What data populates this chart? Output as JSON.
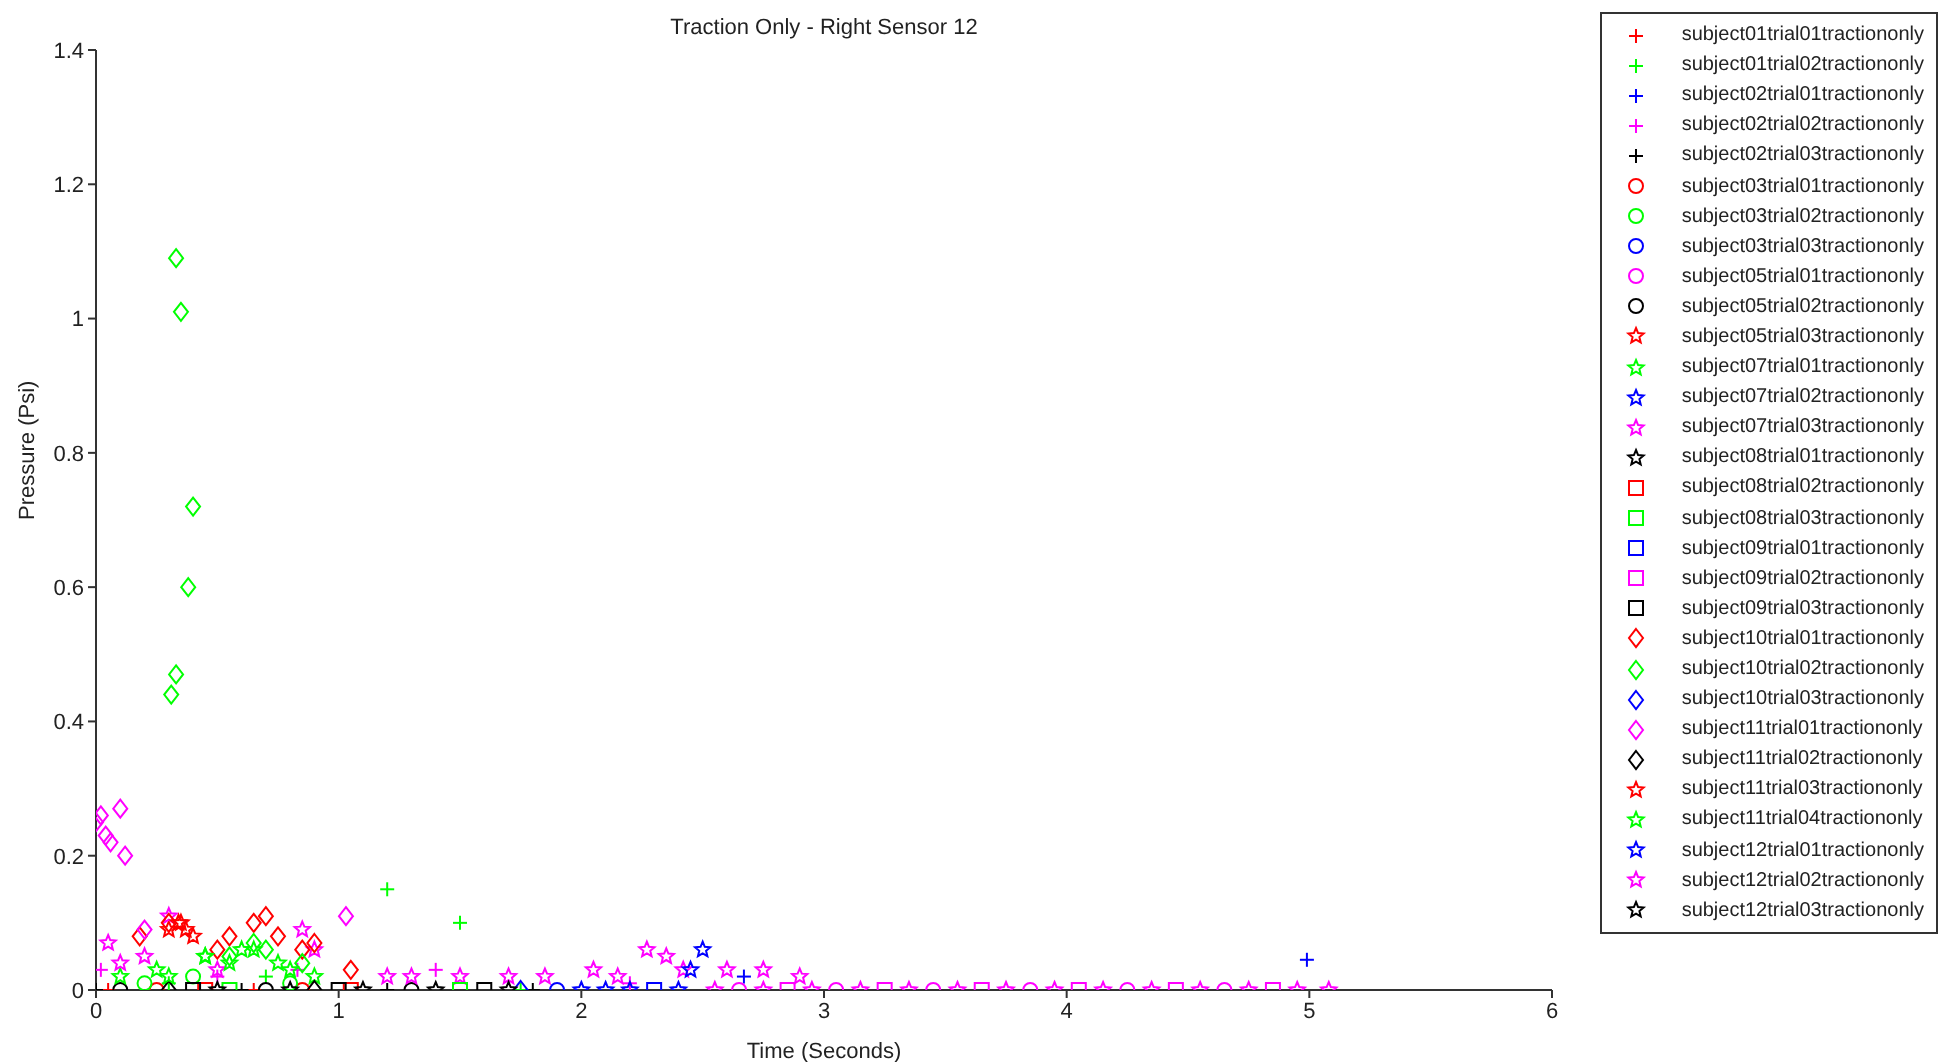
{
  "chart_data": {
    "type": "scatter",
    "title": "Traction Only - Right Sensor 12",
    "xlabel": "Time (Seconds)",
    "ylabel": "Pressure (Psi)",
    "xlim": [
      0,
      6
    ],
    "xticks": [
      0,
      1,
      2,
      3,
      4,
      5,
      6
    ],
    "ylim": [
      0,
      1.4
    ],
    "yticks": [
      0,
      0.2,
      0.4,
      0.6,
      0.8,
      1,
      1.2,
      1.4
    ],
    "grid": false,
    "legend": "right",
    "series": [
      {
        "name": "subject01trial01tractiononly",
        "color": "#ff0000",
        "marker": "cross",
        "x": [
          0.05,
          0.65
        ],
        "values": [
          0,
          0
        ]
      },
      {
        "name": "subject01trial02tractiononly",
        "color": "#00ff00",
        "marker": "cross",
        "x": [
          0.3,
          0.7,
          1.2,
          1.5,
          1.75
        ],
        "values": [
          0.01,
          0.02,
          0.15,
          0.1,
          0
        ]
      },
      {
        "name": "subject02trial01tractiononly",
        "color": "#0000ff",
        "marker": "cross",
        "x": [
          2.67,
          4.99
        ],
        "values": [
          0.02,
          0.045
        ]
      },
      {
        "name": "subject02trial02tractiononly",
        "color": "#ff00ff",
        "marker": "cross",
        "x": [
          0.02,
          0.5,
          0.83,
          1.4,
          2.2
        ],
        "values": [
          0.03,
          0.02,
          0.03,
          0.03,
          0.01
        ]
      },
      {
        "name": "subject02trial03tractiononly",
        "color": "#000000",
        "marker": "cross",
        "x": [
          0.0,
          0.6,
          1.2,
          1.8
        ],
        "values": [
          0,
          0,
          0,
          0
        ]
      },
      {
        "name": "subject03trial01tractiononly",
        "color": "#ff0000",
        "marker": "circle",
        "x": [
          0.25,
          0.85
        ],
        "values": [
          0,
          0
        ]
      },
      {
        "name": "subject03trial02tractiononly",
        "color": "#00ff00",
        "marker": "circle",
        "x": [
          0.2,
          0.4,
          0.8
        ],
        "values": [
          0.01,
          0.02,
          0.01
        ]
      },
      {
        "name": "subject03trial03tractiononly",
        "color": "#0000ff",
        "marker": "circle",
        "x": [
          1.9
        ],
        "values": [
          0
        ]
      },
      {
        "name": "subject05trial01tractiononly",
        "color": "#ff00ff",
        "marker": "circle",
        "x": [
          2.65,
          3.05,
          3.45,
          3.85,
          4.25,
          4.65
        ],
        "values": [
          0,
          0,
          0,
          0,
          0,
          0
        ]
      },
      {
        "name": "subject05trial02tractiononly",
        "color": "#000000",
        "marker": "circle",
        "x": [
          0.1,
          0.7,
          1.3
        ],
        "values": [
          0,
          0,
          0
        ]
      },
      {
        "name": "subject05trial03tractiononly",
        "color": "#ff0000",
        "marker": "star",
        "x": [
          0.3,
          0.35,
          0.4
        ],
        "values": [
          0.09,
          0.1,
          0.08
        ]
      },
      {
        "name": "subject07trial01tractiononly",
        "color": "#00ff00",
        "marker": "star",
        "x": [
          0.1,
          0.25,
          0.45,
          0.6,
          0.75,
          0.9
        ],
        "values": [
          0.02,
          0.03,
          0.05,
          0.06,
          0.04,
          0.02
        ]
      },
      {
        "name": "subject07trial02tractiononly",
        "color": "#0000ff",
        "marker": "star",
        "x": [
          2.1
        ],
        "values": [
          0
        ]
      },
      {
        "name": "subject07trial03tractiononly",
        "color": "#ff00ff",
        "marker": "star",
        "x": [
          0.05,
          0.1,
          0.2,
          0.3,
          0.5,
          0.85,
          0.9,
          1.2,
          1.3,
          1.5,
          1.7,
          1.85,
          2.05,
          2.15,
          2.27,
          2.35,
          2.42,
          2.6,
          2.75,
          2.9
        ],
        "values": [
          0.07,
          0.04,
          0.05,
          0.11,
          0.03,
          0.09,
          0.06,
          0.02,
          0.02,
          0.02,
          0.02,
          0.02,
          0.03,
          0.02,
          0.06,
          0.05,
          0.03,
          0.03,
          0.03,
          0.02
        ]
      },
      {
        "name": "subject08trial01tractiononly",
        "color": "#000000",
        "marker": "star",
        "x": [
          0.8,
          1.4
        ],
        "values": [
          0,
          0
        ]
      },
      {
        "name": "subject08trial02tractiononly",
        "color": "#ff0000",
        "marker": "square",
        "x": [
          0.45,
          1.05
        ],
        "values": [
          0,
          0
        ]
      },
      {
        "name": "subject08trial03tractiononly",
        "color": "#00ff00",
        "marker": "square",
        "x": [
          0.55,
          1.5
        ],
        "values": [
          0,
          0
        ]
      },
      {
        "name": "subject09trial01tractiononly",
        "color": "#0000ff",
        "marker": "square",
        "x": [
          2.3
        ],
        "values": [
          0
        ]
      },
      {
        "name": "subject09trial02tractiononly",
        "color": "#ff00ff",
        "marker": "square",
        "x": [
          2.85,
          3.25,
          3.65,
          4.05,
          4.45,
          4.85
        ],
        "values": [
          0,
          0,
          0,
          0,
          0,
          0
        ]
      },
      {
        "name": "subject09trial03tractiononly",
        "color": "#000000",
        "marker": "square",
        "x": [
          0.4,
          1.0,
          1.6
        ],
        "values": [
          0,
          0,
          0
        ]
      },
      {
        "name": "subject10trial01tractiononly",
        "color": "#ff0000",
        "marker": "diamond",
        "x": [
          0.18,
          0.3,
          0.5,
          0.55,
          0.65,
          0.7,
          0.75,
          0.85,
          0.9,
          1.05
        ],
        "values": [
          0.08,
          0.1,
          0.06,
          0.08,
          0.1,
          0.11,
          0.08,
          0.06,
          0.07,
          0.03
        ]
      },
      {
        "name": "subject10trial02tractiononly",
        "color": "#00ff00",
        "marker": "diamond",
        "x": [
          0.31,
          0.33,
          0.33,
          0.35,
          0.38,
          0.4,
          0.55,
          0.65,
          0.7,
          0.85
        ],
        "values": [
          0.44,
          0.47,
          1.09,
          1.01,
          0.6,
          0.72,
          0.05,
          0.07,
          0.06,
          0.04
        ]
      },
      {
        "name": "subject10trial03tractiononly",
        "color": "#0000ff",
        "marker": "diamond",
        "x": [
          1.75
        ],
        "values": [
          0
        ]
      },
      {
        "name": "subject11trial01tractiononly",
        "color": "#ff00ff",
        "marker": "diamond",
        "x": [
          0.0,
          0.02,
          0.04,
          0.06,
          0.1,
          0.12,
          0.2,
          1.03
        ],
        "values": [
          0.25,
          0.26,
          0.23,
          0.22,
          0.27,
          0.2,
          0.09,
          0.11
        ]
      },
      {
        "name": "subject11trial02tractiononly",
        "color": "#000000",
        "marker": "diamond",
        "x": [
          0.3,
          0.9
        ],
        "values": [
          0,
          0
        ]
      },
      {
        "name": "subject11trial03tractiononly",
        "color": "#ff0000",
        "marker": "star",
        "x": [
          0.34,
          0.37
        ],
        "values": [
          0.1,
          0.09
        ]
      },
      {
        "name": "subject11trial04tractiononly",
        "color": "#00ff00",
        "marker": "star",
        "x": [
          0.3,
          0.45,
          0.55,
          0.65,
          0.8
        ],
        "values": [
          0.02,
          0.05,
          0.04,
          0.06,
          0.03
        ]
      },
      {
        "name": "subject12trial01tractiononly",
        "color": "#0000ff",
        "marker": "star",
        "x": [
          2.0,
          2.2,
          2.4,
          2.45,
          2.5
        ],
        "values": [
          0,
          0,
          0,
          0.03,
          0.06
        ]
      },
      {
        "name": "subject12trial02tractiononly",
        "color": "#ff00ff",
        "marker": "star",
        "x": [
          2.55,
          2.75,
          2.95,
          3.15,
          3.35,
          3.55,
          3.75,
          3.95,
          4.15,
          4.35,
          4.55,
          4.75,
          4.95,
          5.08
        ],
        "values": [
          0,
          0,
          0,
          0,
          0,
          0,
          0,
          0,
          0,
          0,
          0,
          0,
          0,
          0
        ]
      },
      {
        "name": "subject12trial03tractiononly",
        "color": "#000000",
        "marker": "star",
        "x": [
          0.5,
          1.1,
          1.7
        ],
        "values": [
          0,
          0,
          0
        ]
      }
    ]
  }
}
